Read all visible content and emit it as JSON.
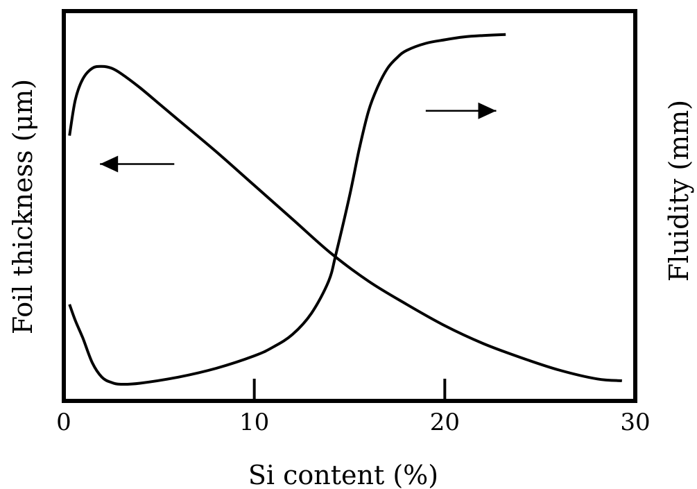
{
  "chart_data": {
    "type": "line",
    "title": "",
    "xlabel": "Si content (%)",
    "ylabel_left": "Foil thickness (μm)",
    "ylabel_right": "Fluidity (mm)",
    "xlim": [
      0,
      30
    ],
    "x_ticks": [
      0,
      10,
      20,
      30
    ],
    "x_tick_labels": [
      "0",
      "10",
      "20",
      "30"
    ],
    "ylim": [
      0,
      1
    ],
    "grid": false,
    "series": [
      {
        "axis": "left",
        "x": [
          0.3,
          0.6,
          1.0,
          1.5,
          2.0,
          2.5,
          3.0,
          4.0,
          5.0,
          6.0,
          8.0,
          10.0,
          12.0,
          14.0,
          16.0,
          18.0,
          20.0,
          22.0,
          24.0,
          26.0,
          28.0,
          29.3
        ],
        "y": [
          0.7,
          0.8,
          0.86,
          0.89,
          0.895,
          0.89,
          0.875,
          0.835,
          0.79,
          0.745,
          0.655,
          0.56,
          0.465,
          0.37,
          0.29,
          0.225,
          0.165,
          0.115,
          0.075,
          0.04,
          0.015,
          0.01
        ]
      },
      {
        "axis": "right",
        "x": [
          0.3,
          0.6,
          1.0,
          1.5,
          2.0,
          2.5,
          3.0,
          4.0,
          6.0,
          8.0,
          10.0,
          11.0,
          12.0,
          13.0,
          13.9,
          14.3,
          15.0,
          15.5,
          16.0,
          16.5,
          17.0,
          17.5,
          18.0,
          19.0,
          20.0,
          21.0,
          22.0,
          23.2
        ],
        "y": [
          0.225,
          0.18,
          0.13,
          0.06,
          0.02,
          0.005,
          0.0,
          0.003,
          0.02,
          0.045,
          0.08,
          0.105,
          0.14,
          0.2,
          0.29,
          0.37,
          0.53,
          0.66,
          0.77,
          0.84,
          0.89,
          0.92,
          0.94,
          0.96,
          0.97,
          0.978,
          0.982,
          0.985
        ]
      }
    ],
    "annotations": [
      {
        "type": "arrow",
        "direction": "left",
        "x_start": 5.8,
        "x_end": 1.9,
        "y": 0.62,
        "meaning": "left axis series"
      },
      {
        "type": "arrow",
        "direction": "right",
        "x_start": 19.0,
        "x_end": 22.7,
        "y": 0.77,
        "meaning": "right axis series"
      }
    ]
  }
}
